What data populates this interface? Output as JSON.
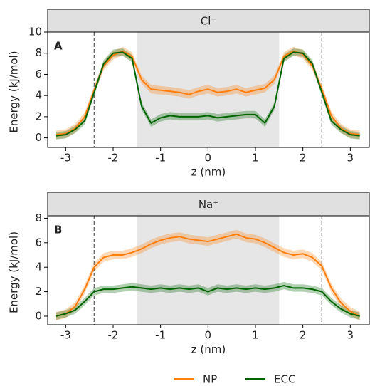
{
  "chart_data": [
    {
      "type": "line",
      "title": "Cl⁻",
      "panel_label": "A",
      "x_label": "z (nm)",
      "y_label": "Energy (kJ/mol)",
      "x": [
        -3.2,
        -3.0,
        -2.8,
        -2.6,
        -2.4,
        -2.2,
        -2.0,
        -1.8,
        -1.6,
        -1.4,
        -1.2,
        -1.0,
        -0.8,
        -0.6,
        -0.4,
        -0.2,
        0,
        0.2,
        0.4,
        0.6,
        0.8,
        1.0,
        1.2,
        1.4,
        1.6,
        1.8,
        2.0,
        2.2,
        2.4,
        2.6,
        2.8,
        3.0,
        3.2
      ],
      "series": [
        {
          "name": "NP",
          "color": "#ff7f0e",
          "values": [
            0.3,
            0.4,
            0.9,
            2.0,
            4.5,
            6.8,
            7.8,
            8.2,
            7.7,
            5.5,
            4.6,
            4.5,
            4.4,
            4.3,
            4.1,
            4.4,
            4.6,
            4.3,
            4.4,
            4.6,
            4.3,
            4.5,
            4.7,
            5.5,
            7.7,
            8.2,
            7.9,
            6.8,
            4.6,
            2.1,
            0.9,
            0.4,
            0.3
          ],
          "errors": [
            0.4,
            0.4,
            0.4,
            0.4,
            0.4,
            0.4,
            0.4,
            0.4,
            0.4,
            0.4,
            0.4,
            0.4,
            0.4,
            0.4,
            0.4,
            0.4,
            0.4,
            0.4,
            0.4,
            0.4,
            0.4,
            0.4,
            0.4,
            0.4,
            0.4,
            0.4,
            0.4,
            0.4,
            0.4,
            0.4,
            0.4,
            0.4,
            0.4
          ]
        },
        {
          "name": "ECC",
          "color": "#006400",
          "values": [
            0.2,
            0.3,
            0.8,
            1.6,
            4.3,
            7.0,
            8.0,
            8.1,
            7.5,
            3.0,
            1.4,
            1.9,
            2.1,
            2.0,
            2.0,
            2.0,
            2.1,
            1.9,
            2.0,
            2.1,
            2.2,
            2.2,
            1.4,
            3.0,
            7.5,
            8.1,
            8.0,
            7.0,
            4.3,
            1.6,
            0.8,
            0.3,
            0.2
          ],
          "errors": [
            0.35,
            0.35,
            0.35,
            0.35,
            0.35,
            0.35,
            0.35,
            0.35,
            0.35,
            0.35,
            0.35,
            0.35,
            0.35,
            0.35,
            0.35,
            0.35,
            0.35,
            0.35,
            0.35,
            0.35,
            0.35,
            0.35,
            0.35,
            0.35,
            0.35,
            0.35,
            0.35,
            0.35,
            0.35,
            0.35,
            0.35,
            0.35,
            0.35
          ]
        }
      ],
      "xlim": [
        -3.38,
        3.4
      ],
      "xticks": [
        -3,
        -2,
        -1,
        0,
        1,
        2,
        3
      ],
      "ylim": [
        -0.9,
        10
      ],
      "yticks": [
        0,
        2,
        4,
        6,
        8,
        10
      ],
      "shaded_region": [
        -1.5,
        1.5
      ],
      "vlines": [
        -2.4,
        2.4
      ]
    },
    {
      "type": "line",
      "title": "Na⁺",
      "panel_label": "B",
      "x_label": "z (nm)",
      "y_label": "Energy (kJ/mol)",
      "x": [
        -3.2,
        -3.0,
        -2.8,
        -2.6,
        -2.4,
        -2.2,
        -2.0,
        -1.8,
        -1.6,
        -1.4,
        -1.2,
        -1.0,
        -0.8,
        -0.6,
        -0.4,
        -0.2,
        0,
        0.2,
        0.4,
        0.6,
        0.8,
        1.0,
        1.2,
        1.4,
        1.6,
        1.8,
        2.0,
        2.2,
        2.4,
        2.6,
        2.8,
        3.0,
        3.2
      ],
      "series": [
        {
          "color": "#ff7f0e",
          "values": [
            0.0,
            0.2,
            0.8,
            2.2,
            4.0,
            4.8,
            5.0,
            5.0,
            5.2,
            5.5,
            5.9,
            6.2,
            6.4,
            6.5,
            6.3,
            6.2,
            6.1,
            6.3,
            6.5,
            6.7,
            6.4,
            6.3,
            6.0,
            5.6,
            5.2,
            5.0,
            5.1,
            4.8,
            4.1,
            2.3,
            1.1,
            0.4,
            0.0
          ],
          "errors": [
            0.35,
            0.35,
            0.35,
            0.35,
            0.35,
            0.35,
            0.35,
            0.35,
            0.35,
            0.35,
            0.35,
            0.35,
            0.35,
            0.35,
            0.35,
            0.35,
            0.35,
            0.35,
            0.35,
            0.35,
            0.35,
            0.35,
            0.35,
            0.35,
            0.35,
            0.35,
            0.35,
            0.35,
            0.35,
            0.35,
            0.35,
            0.35,
            0.35
          ]
        },
        {
          "color": "#006400",
          "values": [
            0.0,
            0.2,
            0.5,
            1.2,
            2.0,
            2.2,
            2.2,
            2.3,
            2.4,
            2.3,
            2.2,
            2.3,
            2.2,
            2.3,
            2.2,
            2.3,
            2.0,
            2.3,
            2.2,
            2.3,
            2.2,
            2.3,
            2.2,
            2.3,
            2.5,
            2.3,
            2.3,
            2.2,
            2.0,
            1.2,
            0.6,
            0.2,
            0.0
          ],
          "errors": [
            0.3,
            0.3,
            0.3,
            0.3,
            0.3,
            0.3,
            0.3,
            0.3,
            0.3,
            0.3,
            0.3,
            0.3,
            0.3,
            0.3,
            0.3,
            0.3,
            0.3,
            0.3,
            0.3,
            0.3,
            0.3,
            0.3,
            0.3,
            0.3,
            0.3,
            0.3,
            0.3,
            0.3,
            0.3,
            0.3,
            0.3,
            0.3,
            0.3
          ]
        }
      ],
      "xlim": [
        -3.38,
        3.4
      ],
      "xticks": [
        -3,
        -2,
        -1,
        0,
        1,
        2,
        3
      ],
      "ylim": [
        -0.7,
        8.2
      ],
      "yticks": [
        0,
        2,
        4,
        6,
        8
      ],
      "shaded_region": [
        -1.5,
        1.5
      ],
      "vlines": [
        -2.4,
        2.4
      ]
    }
  ]
}
